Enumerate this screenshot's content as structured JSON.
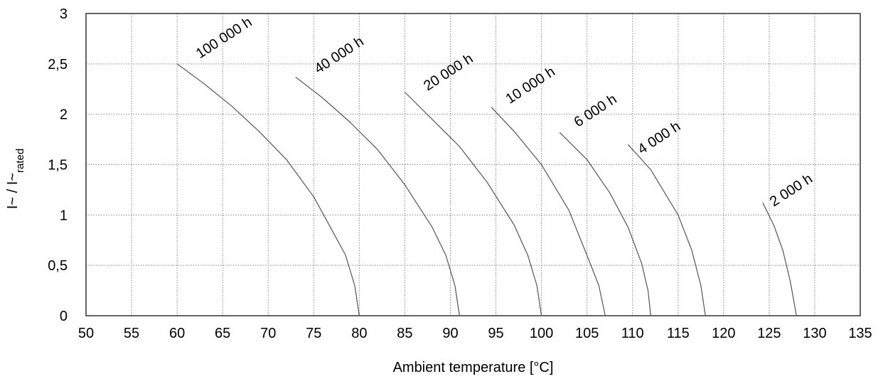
{
  "chart_data": {
    "type": "line",
    "title": "",
    "xlabel": "Ambient temperature [°C]",
    "ylabel": {
      "main": "I~ / I~",
      "sub": "rated"
    },
    "xlim": [
      50,
      135
    ],
    "ylim": [
      0,
      3
    ],
    "x_ticks": [
      50,
      55,
      60,
      65,
      70,
      75,
      80,
      85,
      90,
      95,
      100,
      105,
      110,
      115,
      120,
      125,
      130,
      135
    ],
    "x_tick_labels": [
      "50",
      "55",
      "60",
      "65",
      "70",
      "75",
      "80",
      "85",
      "90",
      "95",
      "100",
      "105",
      "110",
      "115",
      "120",
      "125",
      "130",
      "135"
    ],
    "y_ticks": [
      0,
      0.5,
      1,
      1.5,
      2,
      2.5,
      3
    ],
    "y_tick_labels": [
      "0",
      "0,5",
      "1",
      "1,5",
      "2",
      "2,5",
      "3"
    ],
    "grid": true,
    "grid_style": "dotted",
    "colors": {
      "curve": "#555555",
      "grid": "#888888",
      "frame": "#000000"
    },
    "series": [
      {
        "name": "100 000 h",
        "label_at": [
          62.5,
          2.55
        ],
        "x": [
          60,
          63,
          66,
          69,
          72,
          75,
          77,
          78.5,
          79.5,
          80
        ],
        "y": [
          2.5,
          2.3,
          2.08,
          1.83,
          1.55,
          1.18,
          0.85,
          0.6,
          0.3,
          0
        ]
      },
      {
        "name": "40 000 h",
        "label_at": [
          75.5,
          2.4
        ],
        "x": [
          73,
          76,
          79,
          82,
          85,
          88,
          89.5,
          90.5,
          91
        ],
        "y": [
          2.37,
          2.16,
          1.92,
          1.65,
          1.3,
          0.88,
          0.6,
          0.3,
          0
        ]
      },
      {
        "name": "20 000 h",
        "label_at": [
          87.5,
          2.23
        ],
        "x": [
          85,
          88,
          91,
          94,
          97,
          98.5,
          99.5,
          100
        ],
        "y": [
          2.22,
          1.95,
          1.68,
          1.33,
          0.9,
          0.6,
          0.3,
          0
        ]
      },
      {
        "name": "10 000 h",
        "label_at": [
          96.5,
          2.1
        ],
        "x": [
          94.5,
          97,
          100,
          103,
          105,
          106.3,
          107
        ],
        "y": [
          2.07,
          1.83,
          1.5,
          1.05,
          0.6,
          0.3,
          0
        ]
      },
      {
        "name": "6 000 h",
        "label_at": [
          104,
          1.87
        ],
        "x": [
          102,
          105,
          107.5,
          109.5,
          111,
          111.7,
          112
        ],
        "y": [
          1.82,
          1.55,
          1.22,
          0.88,
          0.52,
          0.25,
          0
        ]
      },
      {
        "name": "4 000 h",
        "label_at": [
          111,
          1.6
        ],
        "x": [
          109.5,
          112,
          115,
          116.5,
          117.5,
          118
        ],
        "y": [
          1.7,
          1.45,
          1.0,
          0.65,
          0.3,
          0
        ]
      },
      {
        "name": "2 000 h",
        "label_at": [
          125.5,
          1.08
        ],
        "x": [
          124.3,
          125.5,
          126.5,
          127.3,
          128
        ],
        "y": [
          1.12,
          0.9,
          0.65,
          0.35,
          0
        ]
      }
    ]
  }
}
